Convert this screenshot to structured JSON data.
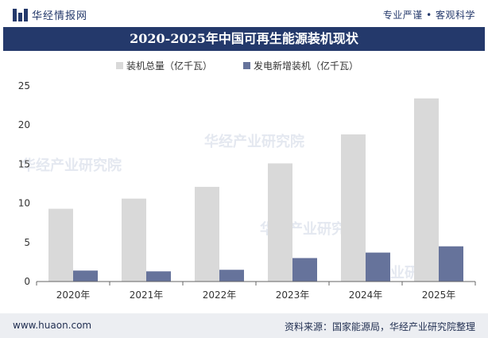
{
  "header": {
    "brand_name": "华经情报网",
    "slogan": "专业严谨 • 客观科学"
  },
  "watermark": "华经产业研究院",
  "footer": {
    "url": "www.huaon.com",
    "source": "资料来源：国家能源局，华经产业研究院整理"
  },
  "colors": {
    "header_blue": "#24396b",
    "series_total": "#d9d9d9",
    "series_new": "#66739b"
  },
  "chart_data": {
    "type": "bar",
    "title": "2020-2025年中国可再生能源装机现状",
    "categories": [
      "2020年",
      "2021年",
      "2022年",
      "2023年",
      "2024年",
      "2025年"
    ],
    "series": [
      {
        "name": "装机总量（亿千瓦）",
        "values": [
          9.3,
          10.6,
          12.1,
          15.1,
          18.8,
          23.4
        ]
      },
      {
        "name": "发电新增装机（亿千瓦）",
        "values": [
          1.4,
          1.3,
          1.5,
          3.0,
          3.7,
          4.5
        ]
      }
    ],
    "ylim": [
      0,
      25
    ],
    "yticks": [
      0,
      5,
      10,
      15,
      20,
      25
    ],
    "legend": "top-center",
    "grid": false
  }
}
